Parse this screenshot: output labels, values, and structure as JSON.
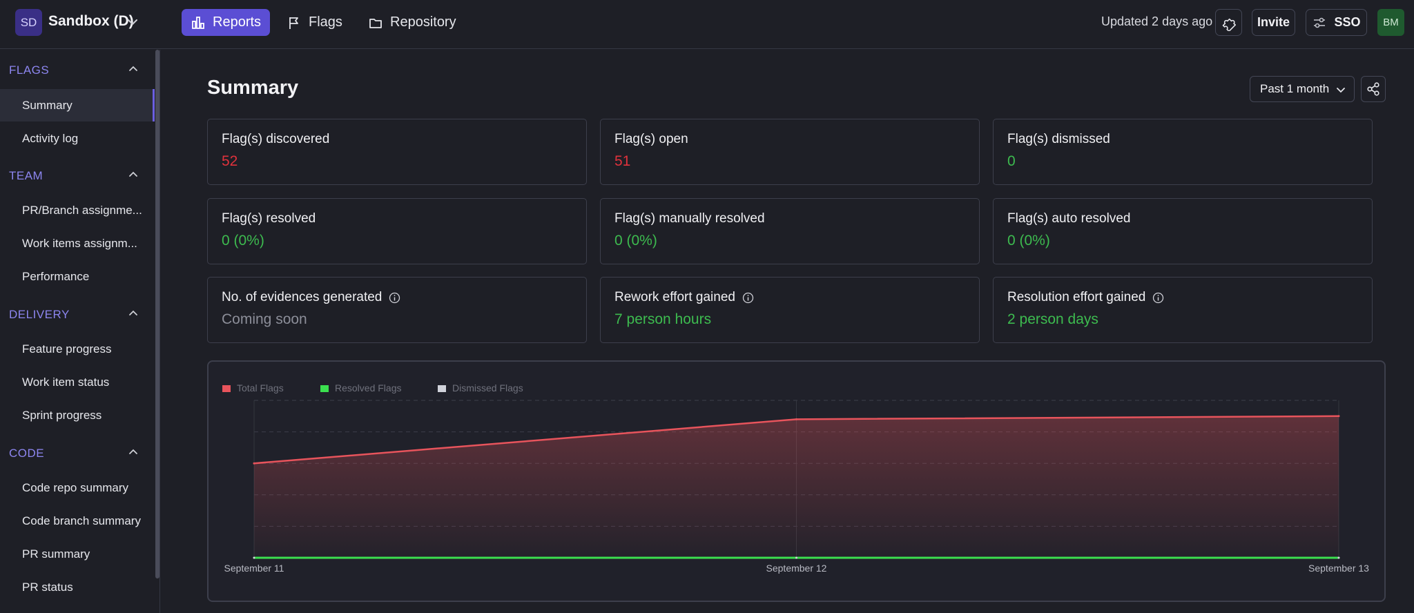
{
  "workspace": {
    "initials": "SD",
    "name": "Sandbox (D)"
  },
  "nav": {
    "reports": "Reports",
    "flags": "Flags",
    "repository": "Repository"
  },
  "header": {
    "updated": "Updated 2 days ago",
    "invite": "Invite",
    "sso": "SSO",
    "avatar": "BM"
  },
  "sidebar": {
    "sections": [
      {
        "title": "FLAGS",
        "items": [
          "Summary",
          "Activity log"
        ]
      },
      {
        "title": "TEAM",
        "items": [
          "PR/Branch assignme...",
          "Work items assignm...",
          "Performance"
        ]
      },
      {
        "title": "DELIVERY",
        "items": [
          "Feature progress",
          "Work item status",
          "Sprint progress"
        ]
      },
      {
        "title": "CODE",
        "items": [
          "Code repo summary",
          "Code branch summary",
          "PR summary",
          "PR status"
        ]
      }
    ],
    "active_item": "Summary"
  },
  "main": {
    "title": "Summary",
    "range": "Past 1 month",
    "cards": [
      {
        "label": "Flag(s) discovered",
        "value": "52",
        "color": "red",
        "info": false
      },
      {
        "label": "Flag(s) open",
        "value": "51",
        "color": "red",
        "info": false
      },
      {
        "label": "Flag(s) dismissed",
        "value": "0",
        "color": "green",
        "info": false
      },
      {
        "label": "Flag(s) resolved",
        "value": "0 (0%)",
        "color": "green",
        "info": false
      },
      {
        "label": "Flag(s) manually resolved",
        "value": "0 (0%)",
        "color": "green",
        "info": false
      },
      {
        "label": "Flag(s) auto resolved",
        "value": "0 (0%)",
        "color": "green",
        "info": false
      },
      {
        "label": "No. of evidences generated",
        "value": "Coming soon",
        "color": "grey",
        "info": true
      },
      {
        "label": "Rework effort gained",
        "value": "7 person hours",
        "color": "green",
        "info": true
      },
      {
        "label": "Resolution effort gained",
        "value": "2 person days",
        "color": "green",
        "info": true
      }
    ]
  },
  "colors": {
    "accent": "#5b4ed4",
    "total_flags": "#e8545c",
    "resolved_flags": "#3be04f",
    "dismissed_flags": "#d0d2da"
  },
  "chart_data": {
    "type": "area",
    "x": [
      "September 11",
      "September 12",
      "September 13"
    ],
    "series": [
      {
        "name": "Total Flags",
        "values": [
          30,
          44,
          45
        ],
        "color": "#e8545c"
      },
      {
        "name": "Resolved Flags",
        "values": [
          0,
          0,
          0
        ],
        "color": "#3be04f"
      },
      {
        "name": "Dismissed Flags",
        "values": [
          0,
          0,
          0
        ],
        "color": "#d0d2da"
      }
    ],
    "ylim": [
      0,
      50
    ],
    "grid": true,
    "legend": "top-left"
  }
}
